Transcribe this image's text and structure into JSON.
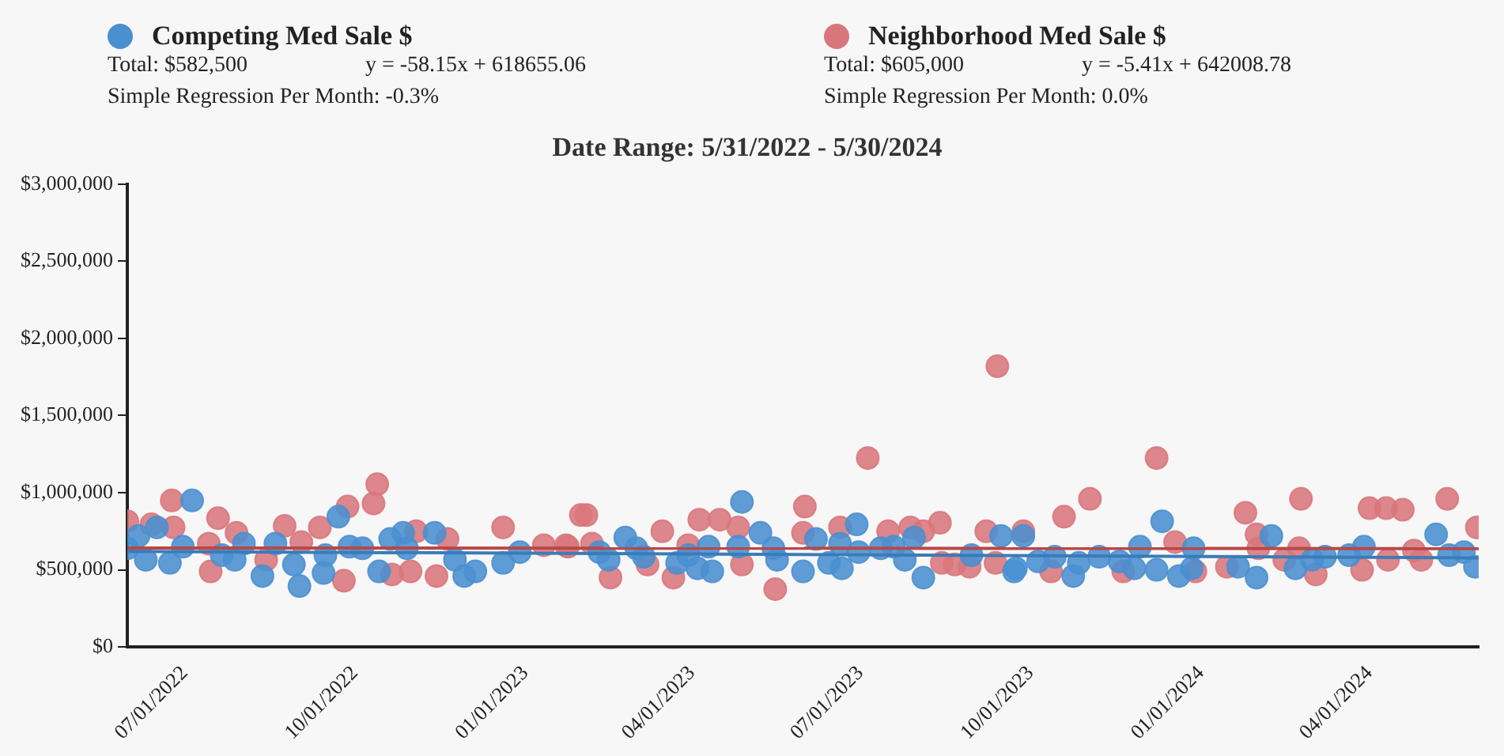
{
  "chart_data": {
    "type": "scatter",
    "title": "Date Range: 5/31/2022 - 5/30/2024",
    "legend": "top",
    "marker": "circle",
    "grid": false,
    "annotations": [
      "Total: $582,500",
      "y = -58.15x + 618655.06",
      "Simple Regression Per Month: -0.3%",
      "Total: $605,000",
      "y = -5.41x + 642008.78",
      "Simple Regression Per Month: 0.0%"
    ],
    "xlim": [
      "2022-05-31",
      "2024-05-30"
    ],
    "xticks": [
      {
        "value": "2022-07-01",
        "label": "07/01/2022"
      },
      {
        "value": "2022-10-01",
        "label": "10/01/2022"
      },
      {
        "value": "2023-01-01",
        "label": "01/01/2023"
      },
      {
        "value": "2023-04-01",
        "label": "04/01/2023"
      },
      {
        "value": "2023-07-01",
        "label": "07/01/2023"
      },
      {
        "value": "2023-10-01",
        "label": "10/01/2023"
      },
      {
        "value": "2024-01-01",
        "label": "01/01/2024"
      },
      {
        "value": "2024-04-01",
        "label": "04/01/2024"
      }
    ],
    "ylim": [
      0,
      3000000
    ],
    "yticks": [
      {
        "value": 0,
        "label": "$0"
      },
      {
        "value": 500000,
        "label": "$500,000"
      },
      {
        "value": 1000000,
        "label": "$1,000,000"
      },
      {
        "value": 1500000,
        "label": "$1,500,000"
      },
      {
        "value": 2000000,
        "label": "$2,000,000"
      },
      {
        "value": 2500000,
        "label": "$2,500,000"
      },
      {
        "value": 3000000,
        "label": "$3,000,000"
      }
    ],
    "series": [
      {
        "name": "Competing Med Sale $",
        "color": "#4a90d0",
        "x": [
          "2022-05-31",
          "2022-06-06",
          "2022-06-10",
          "2022-06-16",
          "2022-06-23",
          "2022-06-30",
          "2022-07-05",
          "2022-07-21",
          "2022-07-28",
          "2022-08-02",
          "2022-08-12",
          "2022-08-19",
          "2022-08-29",
          "2022-09-01",
          "2022-09-14",
          "2022-09-15",
          "2022-09-22",
          "2022-09-28",
          "2022-10-05",
          "2022-10-14",
          "2022-10-20",
          "2022-10-27",
          "2022-10-29",
          "2022-11-13",
          "2022-11-24",
          "2022-11-29",
          "2022-12-05",
          "2022-12-20",
          "2022-12-29",
          "2023-02-10",
          "2023-02-15",
          "2023-02-24",
          "2023-03-02",
          "2023-03-06",
          "2023-03-24",
          "2023-03-30",
          "2023-04-04",
          "2023-04-10",
          "2023-04-12",
          "2023-04-26",
          "2023-04-28",
          "2023-05-08",
          "2023-05-15",
          "2023-05-17",
          "2023-05-31",
          "2023-06-07",
          "2023-06-14",
          "2023-06-20",
          "2023-06-21",
          "2023-06-29",
          "2023-06-30",
          "2023-07-12",
          "2023-07-19",
          "2023-07-25",
          "2023-07-30",
          "2023-08-04",
          "2023-08-30",
          "2023-09-15",
          "2023-09-23",
          "2023-09-22",
          "2023-09-27",
          "2023-10-05",
          "2023-10-14",
          "2023-10-24",
          "2023-10-27",
          "2023-11-07",
          "2023-11-18",
          "2023-11-26",
          "2023-11-29",
          "2023-12-08",
          "2023-12-11",
          "2023-12-20",
          "2023-12-28",
          "2023-12-27",
          "2024-01-21",
          "2024-01-31",
          "2024-02-08",
          "2024-02-21",
          "2024-03-01",
          "2024-03-08",
          "2024-03-21",
          "2024-03-29",
          "2024-05-07",
          "2024-05-14",
          "2024-05-22",
          "2024-05-28"
        ],
        "values": [
          640000,
          720000,
          565000,
          775000,
          545000,
          650000,
          950000,
          595000,
          565000,
          670000,
          460000,
          670000,
          535000,
          395000,
          480000,
          595000,
          845000,
          650000,
          640000,
          490000,
          700000,
          740000,
          640000,
          740000,
          565000,
          460000,
          490000,
          545000,
          615000,
          615000,
          565000,
          710000,
          640000,
          585000,
          545000,
          595000,
          510000,
          650000,
          490000,
          650000,
          940000,
          740000,
          640000,
          565000,
          490000,
          700000,
          545000,
          670000,
          510000,
          795000,
          615000,
          640000,
          650000,
          565000,
          710000,
          450000,
          595000,
          720000,
          510000,
          490000,
          720000,
          555000,
          585000,
          460000,
          545000,
          585000,
          555000,
          510000,
          650000,
          500000,
          815000,
          460000,
          640000,
          510000,
          520000,
          450000,
          720000,
          510000,
          565000,
          585000,
          595000,
          650000,
          730000,
          595000,
          615000,
          520000
        ]
      },
      {
        "name": "Neighborhood Med Sale $",
        "color": "#d9767c",
        "x": [
          "2022-05-31",
          "2022-06-13",
          "2022-06-24",
          "2022-06-25",
          "2022-07-14",
          "2022-07-15",
          "2022-07-19",
          "2022-07-29",
          "2022-08-14",
          "2022-08-24",
          "2022-09-02",
          "2022-09-12",
          "2022-09-25",
          "2022-09-27",
          "2022-10-11",
          "2022-10-13",
          "2022-10-21",
          "2022-10-31",
          "2022-11-03",
          "2022-11-14",
          "2022-11-20",
          "2022-12-20",
          "2023-01-11",
          "2023-01-23",
          "2023-01-24",
          "2023-01-31",
          "2023-02-03",
          "2023-02-06",
          "2023-02-16",
          "2023-03-08",
          "2023-03-16",
          "2023-03-22",
          "2023-03-30",
          "2023-04-05",
          "2023-04-16",
          "2023-04-26",
          "2023-04-28",
          "2023-05-16",
          "2023-05-31",
          "2023-06-01",
          "2023-06-20",
          "2023-07-05",
          "2023-07-16",
          "2023-07-28",
          "2023-08-04",
          "2023-08-13",
          "2023-08-14",
          "2023-08-21",
          "2023-08-29",
          "2023-09-07",
          "2023-09-12",
          "2023-09-13",
          "2023-09-27",
          "2023-10-12",
          "2023-10-19",
          "2023-11-02",
          "2023-11-20",
          "2023-12-08",
          "2023-12-18",
          "2023-12-29",
          "2024-01-15",
          "2024-01-25",
          "2024-01-31",
          "2024-02-01",
          "2024-02-15",
          "2024-02-23",
          "2024-02-24",
          "2024-03-03",
          "2024-03-28",
          "2024-04-01",
          "2024-04-10",
          "2024-04-11",
          "2024-04-19",
          "2024-04-25",
          "2024-04-29",
          "2024-05-13",
          "2024-05-29"
        ],
        "values": [
          815000,
          795000,
          950000,
          775000,
          670000,
          490000,
          835000,
          740000,
          565000,
          785000,
          680000,
          775000,
          430000,
          910000,
          930000,
          1055000,
          470000,
          490000,
          750000,
          460000,
          700000,
          775000,
          660000,
          660000,
          650000,
          855000,
          855000,
          670000,
          450000,
          535000,
          750000,
          450000,
          660000,
          825000,
          825000,
          775000,
          535000,
          375000,
          740000,
          910000,
          775000,
          1225000,
          750000,
          775000,
          750000,
          805000,
          545000,
          535000,
          520000,
          750000,
          545000,
          1820000,
          750000,
          490000,
          845000,
          960000,
          490000,
          1225000,
          680000,
          490000,
          520000,
          870000,
          730000,
          640000,
          565000,
          640000,
          960000,
          470000,
          500000,
          900000,
          900000,
          565000,
          890000,
          625000,
          565000,
          960000,
          775000
        ]
      },
      {
        "type": "line",
        "marker": "none",
        "color": "#3a7cb8",
        "x": [
          "2022-05-31",
          "2024-05-30"
        ],
        "values": [
          620000,
          578000
        ]
      },
      {
        "type": "line",
        "marker": "none",
        "color": "#b84848",
        "x": [
          "2022-05-31",
          "2024-05-30"
        ],
        "values": [
          642000,
          638000
        ]
      }
    ]
  }
}
